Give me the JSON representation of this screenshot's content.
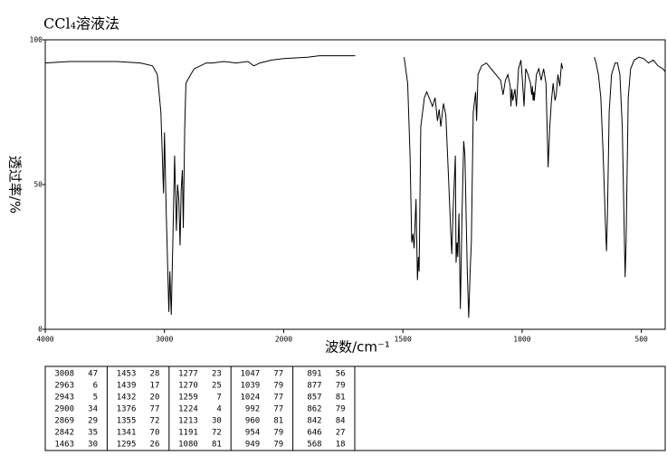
{
  "chart_data": {
    "type": "line",
    "title": "CCl₄溶液法",
    "y_label": "透过率/%",
    "x_label": "波数/cm⁻¹",
    "color": "#000000",
    "xlim": [
      4000,
      400
    ],
    "xticks": [
      4000,
      3000,
      2000,
      1500,
      1000,
      500
    ],
    "x_scale_break": 2000,
    "x_scale_factor_below_break": 2,
    "ylim": [
      0,
      100
    ],
    "yticks": [
      0,
      50,
      100
    ],
    "x": [
      4000,
      3800,
      3600,
      3400,
      3200,
      3100,
      3060,
      3030,
      3008,
      3000,
      2985,
      2963,
      2955,
      2943,
      2930,
      2915,
      2900,
      2890,
      2880,
      2869,
      2860,
      2850,
      2842,
      2830,
      2820,
      2780,
      2750,
      2700,
      2650,
      2600,
      2500,
      2400,
      2300,
      2250,
      2200,
      2100,
      2000,
      1900,
      1850,
      1800,
      1700,
      1600,
      1495,
      1480,
      1470,
      1463,
      1458,
      1453,
      1445,
      1439,
      1435,
      1432,
      1425,
      1410,
      1400,
      1390,
      1376,
      1365,
      1355,
      1348,
      1341,
      1330,
      1320,
      1310,
      1300,
      1295,
      1290,
      1280,
      1277,
      1273,
      1270,
      1265,
      1259,
      1252,
      1245,
      1240,
      1230,
      1224,
      1218,
      1213,
      1205,
      1195,
      1191,
      1185,
      1170,
      1150,
      1130,
      1110,
      1090,
      1080,
      1070,
      1060,
      1050,
      1047,
      1043,
      1039,
      1030,
      1024,
      1015,
      1005,
      998,
      992,
      985,
      975,
      965,
      960,
      957,
      954,
      951,
      949,
      940,
      930,
      920,
      910,
      900,
      891,
      884,
      877,
      870,
      862,
      857,
      850,
      842,
      835,
      830,
      760,
      697,
      690,
      680,
      670,
      660,
      650,
      646,
      642,
      635,
      625,
      610,
      600,
      590,
      580,
      572,
      568,
      564,
      555,
      545,
      530,
      510,
      490,
      470,
      450,
      430,
      410,
      400
    ],
    "values": [
      92,
      92.5,
      92.5,
      92.5,
      92,
      91,
      88,
      75,
      47,
      68,
      40,
      6,
      20,
      5,
      30,
      60,
      34,
      50,
      45,
      29,
      48,
      55,
      35,
      70,
      85,
      88,
      90,
      91,
      92,
      92,
      92.5,
      92,
      92.5,
      91,
      92,
      93,
      93.5,
      94,
      94.5,
      94.5,
      94.5,
      null,
      94,
      85,
      60,
      30,
      33,
      28,
      45,
      17,
      25,
      20,
      70,
      80,
      82,
      80,
      77,
      80,
      72,
      76,
      70,
      78,
      74,
      55,
      35,
      26,
      40,
      60,
      23,
      30,
      25,
      40,
      7,
      40,
      65,
      60,
      20,
      4,
      20,
      30,
      75,
      82,
      72,
      88,
      91,
      92,
      90,
      88,
      86,
      81,
      86,
      88,
      84,
      77,
      83,
      79,
      83,
      77,
      90,
      93,
      85,
      77,
      90,
      88,
      85,
      81,
      84,
      79,
      82,
      79,
      88,
      90,
      86,
      90,
      85,
      56,
      70,
      79,
      85,
      79,
      81,
      88,
      84,
      92,
      90,
      null,
      94,
      92,
      88,
      80,
      60,
      35,
      27,
      40,
      75,
      88,
      92,
      92,
      88,
      70,
      35,
      18,
      30,
      80,
      90,
      93,
      94,
      93.5,
      92,
      93,
      91,
      90,
      89
    ],
    "peak_table": [
      [
        [
          3008,
          47
        ],
        [
          2963,
          6
        ],
        [
          2943,
          5
        ],
        [
          2900,
          34
        ],
        [
          2869,
          29
        ],
        [
          2842,
          35
        ],
        [
          1463,
          30
        ]
      ],
      [
        [
          1453,
          28
        ],
        [
          1439,
          17
        ],
        [
          1432,
          20
        ],
        [
          1376,
          77
        ],
        [
          1355,
          72
        ],
        [
          1341,
          70
        ],
        [
          1295,
          26
        ]
      ],
      [
        [
          1277,
          23
        ],
        [
          1270,
          25
        ],
        [
          1259,
          7
        ],
        [
          1224,
          4
        ],
        [
          1213,
          30
        ],
        [
          1191,
          72
        ],
        [
          1080,
          81
        ]
      ],
      [
        [
          1047,
          77
        ],
        [
          1039,
          79
        ],
        [
          1024,
          77
        ],
        [
          992,
          77
        ],
        [
          960,
          81
        ],
        [
          954,
          79
        ],
        [
          949,
          79
        ]
      ],
      [
        [
          891,
          56
        ],
        [
          877,
          79
        ],
        [
          857,
          81
        ],
        [
          862,
          79
        ],
        [
          842,
          84
        ],
        [
          646,
          27
        ],
        [
          568,
          18
        ]
      ]
    ]
  }
}
